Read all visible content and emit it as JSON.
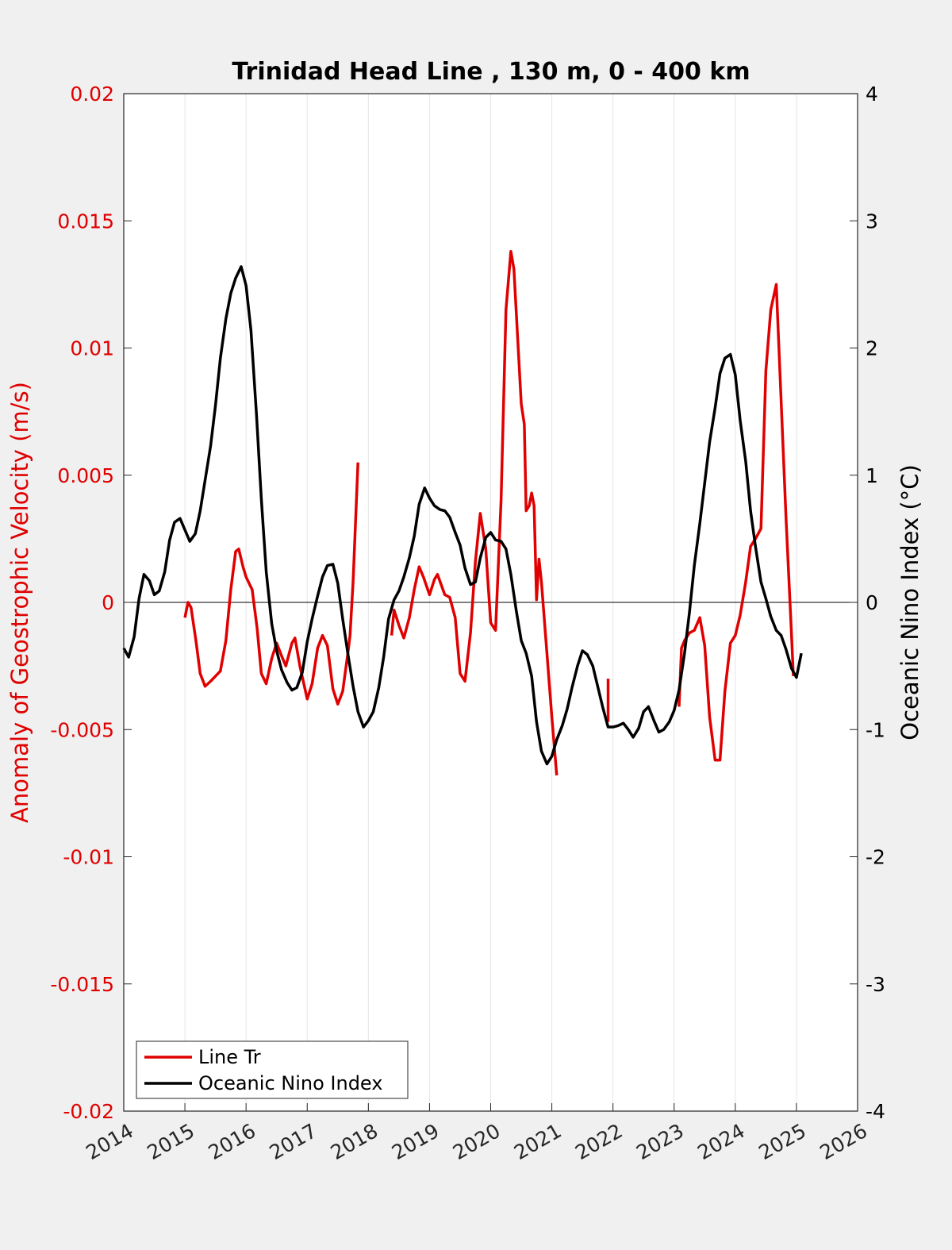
{
  "chart_data": {
    "type": "line",
    "title": "Trinidad Head Line , 130 m, 0 - 400 km",
    "xlabel": "",
    "xlim": [
      2014,
      2026
    ],
    "xticks": [
      "2014",
      "2015",
      "2016",
      "2017",
      "2018",
      "2019",
      "2020",
      "2021",
      "2022",
      "2023",
      "2024",
      "2025",
      "2026"
    ],
    "y_left": {
      "label": "Anomaly of Geostrophic Velocity (m/s)",
      "lim": [
        -0.02,
        0.02
      ],
      "ticks": [
        "0.02",
        "0.015",
        "0.01",
        "0.005",
        "0",
        "-0.005",
        "-0.01",
        "-0.015",
        "-0.02"
      ],
      "color": "#e00000"
    },
    "y_right": {
      "label": "Oceanic Nino Index (°C)",
      "lim": [
        -4,
        4
      ],
      "ticks": [
        "4",
        "3",
        "2",
        "1",
        "0",
        "-1",
        "-2",
        "-3",
        "-4"
      ],
      "color": "#000000"
    },
    "grid": "vertical",
    "legend_location": "lower-left",
    "series": [
      {
        "name": "Line Tr",
        "axis": "left",
        "color": "#e00000",
        "segments": [
          [
            [
              2015.0,
              -0.0006
            ],
            [
              2015.05,
              0.0
            ],
            [
              2015.1,
              -0.0002
            ],
            [
              2015.18,
              -0.0015
            ],
            [
              2015.25,
              -0.0028
            ],
            [
              2015.33,
              -0.0033
            ],
            [
              2015.42,
              -0.0031
            ],
            [
              2015.5,
              -0.0029
            ],
            [
              2015.58,
              -0.0027
            ],
            [
              2015.67,
              -0.0015
            ],
            [
              2015.75,
              0.0005
            ],
            [
              2015.83,
              0.002
            ],
            [
              2015.88,
              0.0021
            ],
            [
              2015.95,
              0.0014
            ],
            [
              2016.0,
              0.001
            ],
            [
              2016.1,
              0.0005
            ],
            [
              2016.18,
              -0.001
            ],
            [
              2016.25,
              -0.0028
            ],
            [
              2016.33,
              -0.0032
            ],
            [
              2016.42,
              -0.0022
            ],
            [
              2016.5,
              -0.0016
            ],
            [
              2016.58,
              -0.0021
            ],
            [
              2016.65,
              -0.0025
            ],
            [
              2016.75,
              -0.0016
            ],
            [
              2016.8,
              -0.0014
            ],
            [
              2016.88,
              -0.0025
            ],
            [
              2017.0,
              -0.0038
            ],
            [
              2017.08,
              -0.0032
            ],
            [
              2017.17,
              -0.0018
            ],
            [
              2017.25,
              -0.0013
            ],
            [
              2017.33,
              -0.0017
            ],
            [
              2017.42,
              -0.0034
            ],
            [
              2017.5,
              -0.004
            ],
            [
              2017.58,
              -0.0035
            ],
            [
              2017.67,
              -0.0019
            ],
            [
              2017.7,
              -0.0013
            ],
            [
              2017.75,
              0.0008
            ],
            [
              2017.83,
              0.0055
            ]
          ],
          [
            [
              2018.38,
              -0.0013
            ],
            [
              2018.42,
              -0.0003
            ],
            [
              2018.5,
              -0.0009
            ],
            [
              2018.58,
              -0.0014
            ],
            [
              2018.67,
              -0.0006
            ],
            [
              2018.75,
              0.0005
            ],
            [
              2018.83,
              0.0014
            ],
            [
              2018.9,
              0.001
            ],
            [
              2019.0,
              0.0003
            ],
            [
              2019.08,
              0.0009
            ],
            [
              2019.13,
              0.0011
            ],
            [
              2019.25,
              0.0003
            ],
            [
              2019.33,
              0.0002
            ],
            [
              2019.42,
              -0.0006
            ],
            [
              2019.5,
              -0.0028
            ],
            [
              2019.58,
              -0.0031
            ],
            [
              2019.67,
              -0.0012
            ],
            [
              2019.75,
              0.0016
            ],
            [
              2019.83,
              0.0035
            ],
            [
              2019.92,
              0.0021
            ],
            [
              2020.0,
              -0.0008
            ],
            [
              2020.08,
              -0.0011
            ],
            [
              2020.17,
              0.004
            ],
            [
              2020.25,
              0.0115
            ],
            [
              2020.33,
              0.0138
            ],
            [
              2020.38,
              0.0131
            ],
            [
              2020.5,
              0.0078
            ],
            [
              2020.55,
              0.007
            ],
            [
              2020.58,
              0.0036
            ],
            [
              2020.63,
              0.0038
            ],
            [
              2020.67,
              0.0043
            ],
            [
              2020.71,
              0.0038
            ],
            [
              2020.75,
              0.0001
            ],
            [
              2020.79,
              0.0017
            ],
            [
              2020.83,
              0.0008
            ],
            [
              2020.92,
              -0.002
            ],
            [
              2021.0,
              -0.0045
            ],
            [
              2021.08,
              -0.0068
            ]
          ],
          [
            [
              2021.92,
              -0.003
            ],
            [
              2021.92,
              -0.0047
            ]
          ],
          [
            [
              2023.08,
              -0.0041
            ],
            [
              2023.12,
              -0.0018
            ],
            [
              2023.17,
              -0.0015
            ],
            [
              2023.25,
              -0.0012
            ],
            [
              2023.33,
              -0.0011
            ],
            [
              2023.42,
              -0.0006
            ],
            [
              2023.5,
              -0.0017
            ],
            [
              2023.58,
              -0.0045
            ],
            [
              2023.67,
              -0.0062
            ],
            [
              2023.75,
              -0.0062
            ],
            [
              2023.83,
              -0.0035
            ],
            [
              2023.92,
              -0.0016
            ],
            [
              2024.0,
              -0.0013
            ],
            [
              2024.08,
              -0.0005
            ],
            [
              2024.17,
              0.0008
            ],
            [
              2024.25,
              0.0022
            ],
            [
              2024.33,
              0.0025
            ],
            [
              2024.42,
              0.0029
            ],
            [
              2024.5,
              0.0091
            ],
            [
              2024.58,
              0.0115
            ],
            [
              2024.67,
              0.0125
            ],
            [
              2024.75,
              0.0079
            ],
            [
              2024.83,
              0.0033
            ],
            [
              2024.92,
              -0.0013
            ],
            [
              2024.95,
              -0.0029
            ]
          ]
        ]
      },
      {
        "name": "Oceanic Nino Index",
        "axis": "right",
        "color": "#000000",
        "segments": [
          [
            [
              2014.0,
              -0.36
            ],
            [
              2014.08,
              -0.43
            ],
            [
              2014.17,
              -0.27
            ],
            [
              2014.25,
              0.03
            ],
            [
              2014.33,
              0.22
            ],
            [
              2014.42,
              0.17
            ],
            [
              2014.5,
              0.06
            ],
            [
              2014.58,
              0.09
            ],
            [
              2014.67,
              0.24
            ],
            [
              2014.75,
              0.49
            ],
            [
              2014.83,
              0.63
            ],
            [
              2014.92,
              0.66
            ],
            [
              2015.0,
              0.57
            ],
            [
              2015.08,
              0.48
            ],
            [
              2015.17,
              0.54
            ],
            [
              2015.25,
              0.72
            ],
            [
              2015.33,
              0.96
            ],
            [
              2015.42,
              1.23
            ],
            [
              2015.5,
              1.55
            ],
            [
              2015.58,
              1.92
            ],
            [
              2015.67,
              2.23
            ],
            [
              2015.75,
              2.43
            ],
            [
              2015.83,
              2.55
            ],
            [
              2015.92,
              2.64
            ],
            [
              2016.0,
              2.49
            ],
            [
              2016.08,
              2.14
            ],
            [
              2016.17,
              1.48
            ],
            [
              2016.25,
              0.81
            ],
            [
              2016.33,
              0.24
            ],
            [
              2016.42,
              -0.17
            ],
            [
              2016.5,
              -0.38
            ],
            [
              2016.58,
              -0.53
            ],
            [
              2016.67,
              -0.63
            ],
            [
              2016.75,
              -0.69
            ],
            [
              2016.83,
              -0.67
            ],
            [
              2016.92,
              -0.55
            ],
            [
              2017.0,
              -0.31
            ],
            [
              2017.08,
              -0.13
            ],
            [
              2017.17,
              0.05
            ],
            [
              2017.25,
              0.2
            ],
            [
              2017.33,
              0.29
            ],
            [
              2017.42,
              0.3
            ],
            [
              2017.5,
              0.15
            ],
            [
              2017.58,
              -0.13
            ],
            [
              2017.67,
              -0.42
            ],
            [
              2017.75,
              -0.66
            ],
            [
              2017.83,
              -0.86
            ],
            [
              2017.92,
              -0.98
            ],
            [
              2018.0,
              -0.93
            ],
            [
              2018.08,
              -0.86
            ],
            [
              2018.17,
              -0.67
            ],
            [
              2018.25,
              -0.43
            ],
            [
              2018.33,
              -0.13
            ],
            [
              2018.42,
              0.02
            ],
            [
              2018.5,
              0.09
            ],
            [
              2018.58,
              0.2
            ],
            [
              2018.67,
              0.35
            ],
            [
              2018.75,
              0.52
            ],
            [
              2018.83,
              0.77
            ],
            [
              2018.92,
              0.9
            ],
            [
              2019.0,
              0.82
            ],
            [
              2019.08,
              0.76
            ],
            [
              2019.17,
              0.73
            ],
            [
              2019.25,
              0.72
            ],
            [
              2019.33,
              0.67
            ],
            [
              2019.42,
              0.55
            ],
            [
              2019.5,
              0.45
            ],
            [
              2019.58,
              0.27
            ],
            [
              2019.67,
              0.14
            ],
            [
              2019.75,
              0.16
            ],
            [
              2019.83,
              0.35
            ],
            [
              2019.92,
              0.51
            ],
            [
              2020.0,
              0.55
            ],
            [
              2020.08,
              0.49
            ],
            [
              2020.17,
              0.48
            ],
            [
              2020.25,
              0.42
            ],
            [
              2020.33,
              0.22
            ],
            [
              2020.42,
              -0.07
            ],
            [
              2020.5,
              -0.3
            ],
            [
              2020.58,
              -0.4
            ],
            [
              2020.67,
              -0.58
            ],
            [
              2020.75,
              -0.94
            ],
            [
              2020.83,
              -1.17
            ],
            [
              2020.92,
              -1.27
            ],
            [
              2021.0,
              -1.21
            ],
            [
              2021.08,
              -1.08
            ],
            [
              2021.17,
              -0.97
            ],
            [
              2021.25,
              -0.84
            ],
            [
              2021.33,
              -0.67
            ],
            [
              2021.42,
              -0.5
            ],
            [
              2021.5,
              -0.38
            ],
            [
              2021.58,
              -0.41
            ],
            [
              2021.67,
              -0.5
            ],
            [
              2021.75,
              -0.66
            ],
            [
              2021.83,
              -0.82
            ],
            [
              2021.92,
              -0.98
            ],
            [
              2022.0,
              -0.98
            ],
            [
              2022.08,
              -0.97
            ],
            [
              2022.17,
              -0.95
            ],
            [
              2022.25,
              -1.0
            ],
            [
              2022.33,
              -1.06
            ],
            [
              2022.42,
              -0.99
            ],
            [
              2022.5,
              -0.86
            ],
            [
              2022.58,
              -0.82
            ],
            [
              2022.67,
              -0.93
            ],
            [
              2022.75,
              -1.02
            ],
            [
              2022.83,
              -1.0
            ],
            [
              2022.92,
              -0.94
            ],
            [
              2023.0,
              -0.85
            ],
            [
              2023.08,
              -0.69
            ],
            [
              2023.17,
              -0.4
            ],
            [
              2023.25,
              -0.08
            ],
            [
              2023.33,
              0.29
            ],
            [
              2023.42,
              0.62
            ],
            [
              2023.5,
              0.94
            ],
            [
              2023.58,
              1.26
            ],
            [
              2023.67,
              1.53
            ],
            [
              2023.75,
              1.8
            ],
            [
              2023.83,
              1.92
            ],
            [
              2023.92,
              1.95
            ],
            [
              2024.0,
              1.79
            ],
            [
              2024.08,
              1.43
            ],
            [
              2024.17,
              1.11
            ],
            [
              2024.25,
              0.72
            ],
            [
              2024.33,
              0.44
            ],
            [
              2024.42,
              0.16
            ],
            [
              2024.5,
              0.03
            ],
            [
              2024.58,
              -0.11
            ],
            [
              2024.67,
              -0.22
            ],
            [
              2024.75,
              -0.26
            ],
            [
              2024.83,
              -0.37
            ],
            [
              2024.92,
              -0.52
            ],
            [
              2025.0,
              -0.59
            ],
            [
              2025.08,
              -0.4
            ]
          ]
        ]
      }
    ]
  }
}
